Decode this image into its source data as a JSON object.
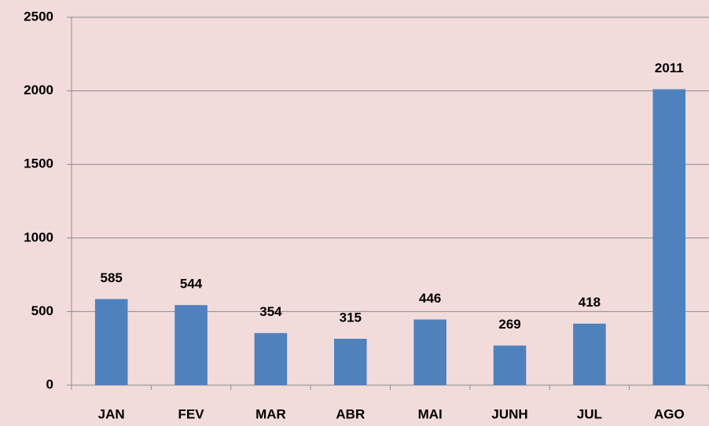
{
  "chart_data": {
    "type": "bar",
    "categories": [
      "JAN",
      "FEV",
      "MAR",
      "ABR",
      "MAI",
      "JUNH",
      "JUL",
      "AGO"
    ],
    "values": [
      585,
      544,
      354,
      315,
      446,
      269,
      418,
      2011
    ],
    "color": "#4f81bd",
    "ylim": [
      0,
      2500
    ],
    "yticks": [
      0,
      500,
      1000,
      1500,
      2000,
      2500
    ],
    "grid": true
  }
}
